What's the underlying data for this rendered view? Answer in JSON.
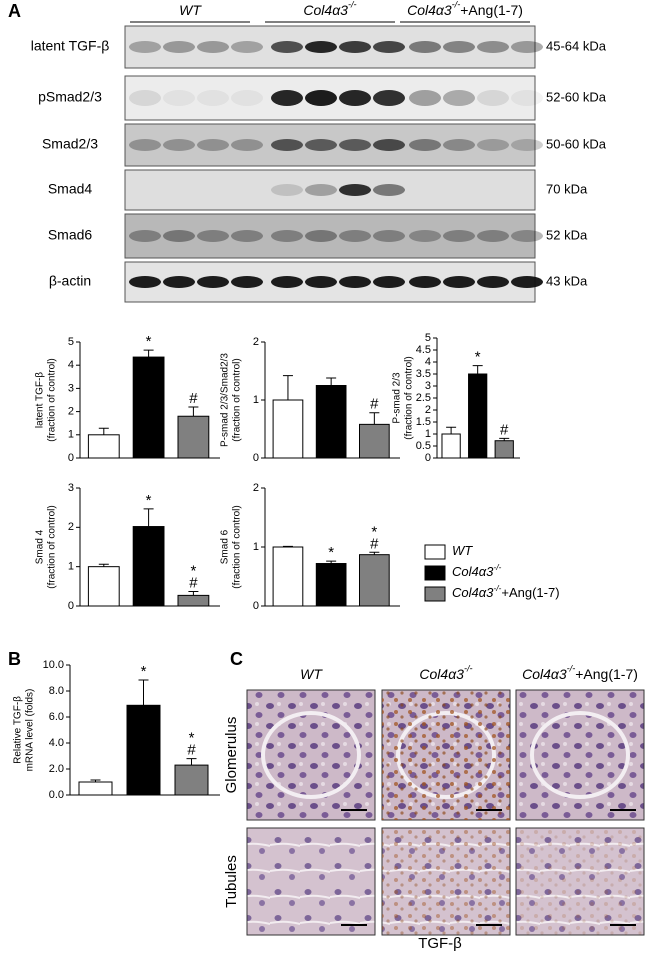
{
  "panels": {
    "a": "A",
    "b": "B",
    "c": "C"
  },
  "groups": [
    {
      "name": "WT",
      "color": "#ffffff"
    },
    {
      "name": "Col4α3",
      "sup": "-/-",
      "color": "#000000"
    },
    {
      "name": "Col4α3",
      "sup": "-/-",
      "suffix": "+Ang(1-7)",
      "color": "#808080"
    }
  ],
  "blot": {
    "rows": [
      {
        "label": "latent TGF-β",
        "size": "45-64 kDa"
      },
      {
        "label": "pSmad2/3",
        "size": "52-60 kDa"
      },
      {
        "label": "Smad2/3",
        "size": "50-60 kDa"
      },
      {
        "label": "Smad4",
        "size": "70 kDa"
      },
      {
        "label": "Smad6",
        "size": "52 kDa"
      },
      {
        "label": "β-actin",
        "size": "43 kDa"
      }
    ]
  },
  "chart_data": [
    {
      "type": "bar",
      "ylabel": [
        "latent TGF-β",
        "(fraction of control)"
      ],
      "values": [
        1,
        4.35,
        1.8
      ],
      "errors": [
        0.28,
        0.3,
        0.4
      ],
      "annotations": [
        null,
        [
          "*"
        ],
        [
          "#"
        ]
      ],
      "ylim": [
        0,
        5
      ],
      "yticks": [
        0,
        1,
        2,
        3,
        4,
        5
      ]
    },
    {
      "type": "bar",
      "ylabel": [
        "P-smad 2/3/Smad2/3",
        "(fraction of control)"
      ],
      "values": [
        1,
        1.25,
        0.58
      ],
      "errors": [
        0.42,
        0.13,
        0.2
      ],
      "annotations": [
        null,
        null,
        [
          "#"
        ]
      ],
      "ylim": [
        0,
        2
      ],
      "yticks": [
        0,
        1,
        2
      ]
    },
    {
      "type": "bar",
      "ylabel": [
        "P-smad 2/3",
        "(fraction of control)"
      ],
      "values": [
        1,
        3.5,
        0.72
      ],
      "errors": [
        0.28,
        0.35,
        0.1
      ],
      "annotations": [
        null,
        [
          "*"
        ],
        [
          "#"
        ]
      ],
      "ylim": [
        0,
        5
      ],
      "yticks": [
        0,
        0.5,
        1,
        1.5,
        2,
        2.5,
        3,
        3.5,
        4,
        4.5,
        5
      ]
    },
    {
      "type": "bar",
      "ylabel": [
        "Smad 4",
        "(fraction of control)"
      ],
      "values": [
        1,
        2.02,
        0.27
      ],
      "errors": [
        0.06,
        0.45,
        0.1
      ],
      "annotations": [
        null,
        [
          "*"
        ],
        [
          "*",
          "#"
        ]
      ],
      "ylim": [
        0,
        3
      ],
      "yticks": [
        0,
        1,
        2,
        3
      ]
    },
    {
      "type": "bar",
      "ylabel": [
        "Smad 6",
        "(fraction of control)"
      ],
      "values": [
        1,
        0.72,
        0.87
      ],
      "errors": [
        0.01,
        0.04,
        0.04
      ],
      "annotations": [
        null,
        [
          "*"
        ],
        [
          "*",
          "#"
        ]
      ],
      "ylim": [
        0,
        2
      ],
      "yticks": [
        0,
        1,
        2
      ]
    },
    {
      "type": "bar",
      "ylabel": [
        "Relative TGF-β",
        "mRNA level (folds)"
      ],
      "values": [
        1,
        6.9,
        2.3
      ],
      "errors": [
        0.15,
        1.95,
        0.5
      ],
      "annotations": [
        null,
        [
          "*"
        ],
        [
          "*",
          "#"
        ]
      ],
      "ylim": [
        0,
        10
      ],
      "yticks": [
        {
          "value": 0,
          "label": "0.0"
        },
        {
          "value": 2,
          "label": "2.0"
        },
        {
          "value": 4,
          "label": "4.0"
        },
        {
          "value": 6,
          "label": "6.0"
        },
        {
          "value": 8,
          "label": "8.0"
        },
        {
          "value": 10,
          "label": "10.0"
        }
      ]
    }
  ],
  "histology": {
    "rows": [
      "Glomerulus",
      "Tubules"
    ],
    "caption": "TGF-β"
  }
}
